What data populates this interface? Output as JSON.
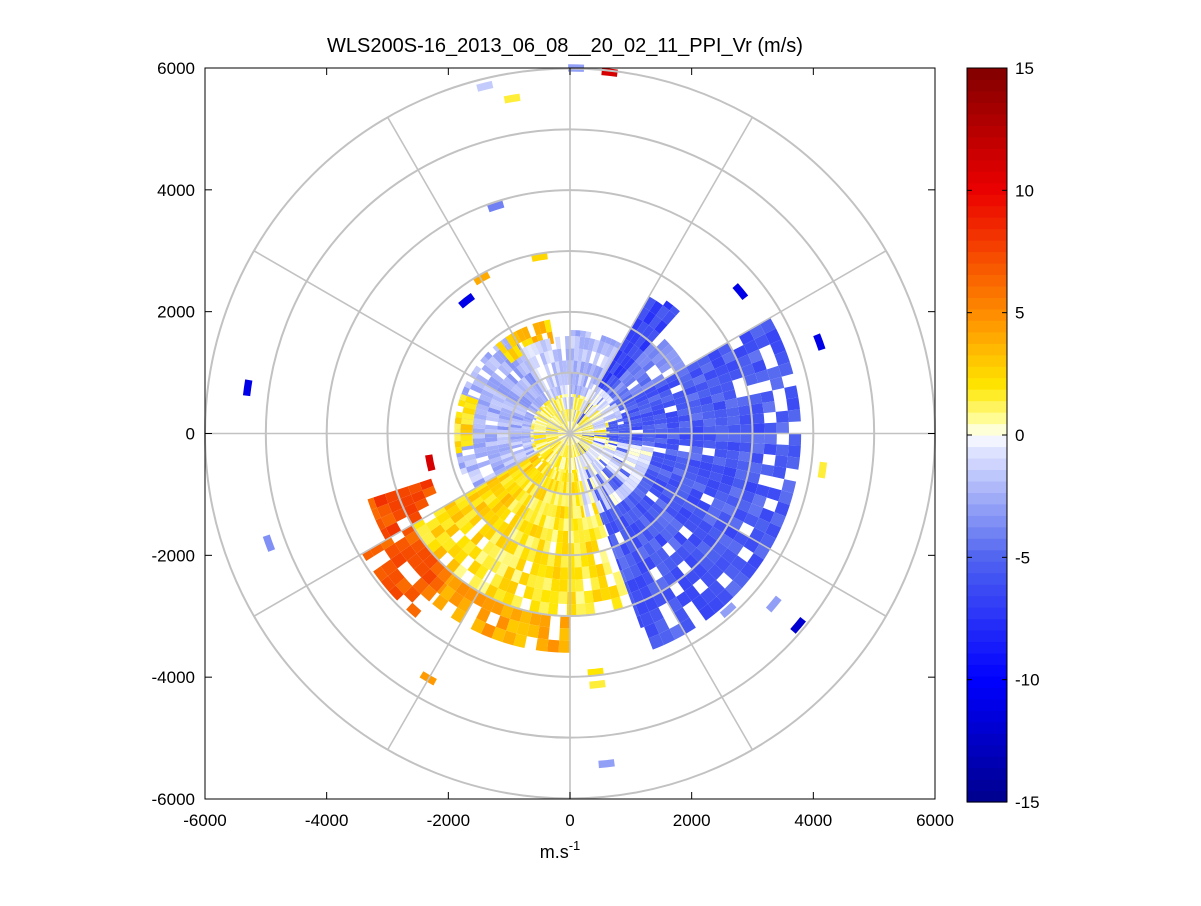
{
  "chart_data": {
    "type": "heatmap",
    "subtype": "polar-ppi",
    "title": "WLS200S-16_2013_06_08__20_02_11_PPI_Vr (m/s)",
    "xlabel": "m.s",
    "xlabel_sup": "-1",
    "ylabel": "",
    "xlim": [
      -6000,
      6000
    ],
    "ylim": [
      -6000,
      6000
    ],
    "xticks": [
      -6000,
      -4000,
      -2000,
      0,
      2000,
      4000,
      6000
    ],
    "yticks": [
      6000,
      4000,
      2000,
      0,
      -2000,
      -4000,
      -6000
    ],
    "xtick_labels": [
      "-6000",
      "-4000",
      "-2000",
      "0",
      "2000",
      "4000",
      "6000"
    ],
    "ytick_labels": [
      "6000",
      "4000",
      "2000",
      "0",
      "-2000",
      "-4000",
      "-6000"
    ],
    "range_rings": [
      1000,
      2000,
      3000,
      4000,
      5000,
      6000
    ],
    "spoke_angles_deg": [
      0,
      30,
      60,
      90,
      120,
      150,
      180,
      210,
      240,
      270,
      300,
      330
    ],
    "colorbar": {
      "range": [
        -15,
        15
      ],
      "ticks": [
        15,
        10,
        5,
        0,
        -5,
        -10,
        -15
      ],
      "tick_labels": [
        "15",
        "10",
        "5",
        "0",
        "-5",
        "-10",
        "-15"
      ]
    },
    "sectors": [
      {
        "az_start": 30,
        "az_end": 42,
        "r_start": 200,
        "r_end": 2700,
        "v": -6.5
      },
      {
        "az_start": 60,
        "az_end": 160,
        "r_start": 200,
        "r_end": 3800,
        "v": -5.5
      },
      {
        "az_start": 42,
        "az_end": 60,
        "r_start": 200,
        "r_end": 2200,
        "v": -4.0
      },
      {
        "az_start": 0,
        "az_end": 30,
        "r_start": 200,
        "r_end": 1700,
        "v": -2.0
      },
      {
        "az_start": 160,
        "az_end": 220,
        "r_start": 200,
        "r_end": 3000,
        "v": 1.8
      },
      {
        "az_start": 180,
        "az_end": 220,
        "r_start": 3000,
        "r_end": 3600,
        "v": 4.0
      },
      {
        "az_start": 220,
        "az_end": 240,
        "r_start": 200,
        "r_end": 3000,
        "v": 2.5
      },
      {
        "az_start": 220,
        "az_end": 240,
        "r_start": 3000,
        "r_end": 3950,
        "v": 6.5
      },
      {
        "az_start": 240,
        "az_end": 252,
        "r_start": 2400,
        "r_end": 3500,
        "v": 7.2
      },
      {
        "az_start": 240,
        "az_end": 270,
        "r_start": 200,
        "r_end": 1900,
        "v": -2.0
      },
      {
        "az_start": 270,
        "az_end": 330,
        "r_start": 200,
        "r_end": 1900,
        "v": -2.5
      },
      {
        "az_start": 260,
        "az_end": 290,
        "r_start": 1600,
        "r_end": 1900,
        "v": 2.2
      },
      {
        "az_start": 320,
        "az_end": 350,
        "r_start": 1500,
        "r_end": 1900,
        "v": 3.0
      },
      {
        "az_start": 330,
        "az_end": 360,
        "r_start": 200,
        "r_end": 1600,
        "v": -1.5
      },
      {
        "az_start": 0,
        "az_end": 360,
        "r_start": 0,
        "r_end": 650,
        "v": 1.2
      },
      {
        "az_start": 100,
        "az_end": 170,
        "r_start": 400,
        "r_end": 1400,
        "v": -0.6
      },
      {
        "az_start": 20,
        "az_end": 80,
        "r_start": 400,
        "r_end": 900,
        "v": -0.8
      }
    ],
    "speckles": [
      {
        "x": 100,
        "y": 6000,
        "v": -3.0
      },
      {
        "x": 650,
        "y": 5930,
        "v": 11.0
      },
      {
        "x": -1400,
        "y": 5700,
        "v": -1.5
      },
      {
        "x": -950,
        "y": 5500,
        "v": 1.5
      },
      {
        "x": -1220,
        "y": 3730,
        "v": -4.0
      },
      {
        "x": -500,
        "y": 2900,
        "v": 2.5
      },
      {
        "x": -1450,
        "y": 2550,
        "v": 4.0
      },
      {
        "x": -1700,
        "y": 2180,
        "v": -11.0
      },
      {
        "x": 2800,
        "y": 2330,
        "v": -11.0
      },
      {
        "x": 4100,
        "y": 1500,
        "v": -11.0
      },
      {
        "x": -5300,
        "y": 750,
        "v": -11.0
      },
      {
        "x": 4150,
        "y": -600,
        "v": 1.5
      },
      {
        "x": -2300,
        "y": -480,
        "v": 11.0
      },
      {
        "x": -4950,
        "y": -1800,
        "v": -3.5
      },
      {
        "x": 2600,
        "y": -2900,
        "v": -3.0
      },
      {
        "x": 3350,
        "y": -2800,
        "v": -3.0
      },
      {
        "x": 3750,
        "y": -3150,
        "v": -12.0
      },
      {
        "x": -2330,
        "y": -4020,
        "v": 4.5
      },
      {
        "x": 420,
        "y": -3920,
        "v": 2.0
      },
      {
        "x": 450,
        "y": -4120,
        "v": 1.5
      },
      {
        "x": 600,
        "y": -5420,
        "v": -3.0
      }
    ]
  }
}
